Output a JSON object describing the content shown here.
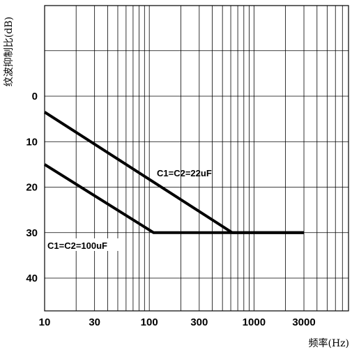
{
  "chart_data": {
    "type": "line",
    "xlabel": "频率(Hz)",
    "ylabel": "纹波抑制比(dB)",
    "x_scale": "log",
    "xlim": [
      10,
      8000
    ],
    "ylim": [
      0,
      47
    ],
    "y_inverted": true,
    "grid": true,
    "x_tick_labels": [
      {
        "value": 10,
        "label": "10"
      },
      {
        "value": 30,
        "label": "30"
      },
      {
        "value": 100,
        "label": "100"
      },
      {
        "value": 300,
        "label": "300"
      },
      {
        "value": 1000,
        "label": "1000"
      },
      {
        "value": 3000,
        "label": "3000"
      }
    ],
    "y_tick_labels": [
      {
        "value": 0,
        "label": "0"
      },
      {
        "value": 10,
        "label": "10"
      },
      {
        "value": 20,
        "label": "20"
      },
      {
        "value": 30,
        "label": "30"
      },
      {
        "value": 40,
        "label": "40"
      }
    ],
    "series": [
      {
        "name": "C1=C2=22uF",
        "x": [
          10,
          620,
          3000
        ],
        "y": [
          3.5,
          30,
          30
        ]
      },
      {
        "name": "C1=C2=100uF",
        "x": [
          10,
          110,
          3000
        ],
        "y": [
          15,
          30,
          30
        ]
      }
    ]
  }
}
